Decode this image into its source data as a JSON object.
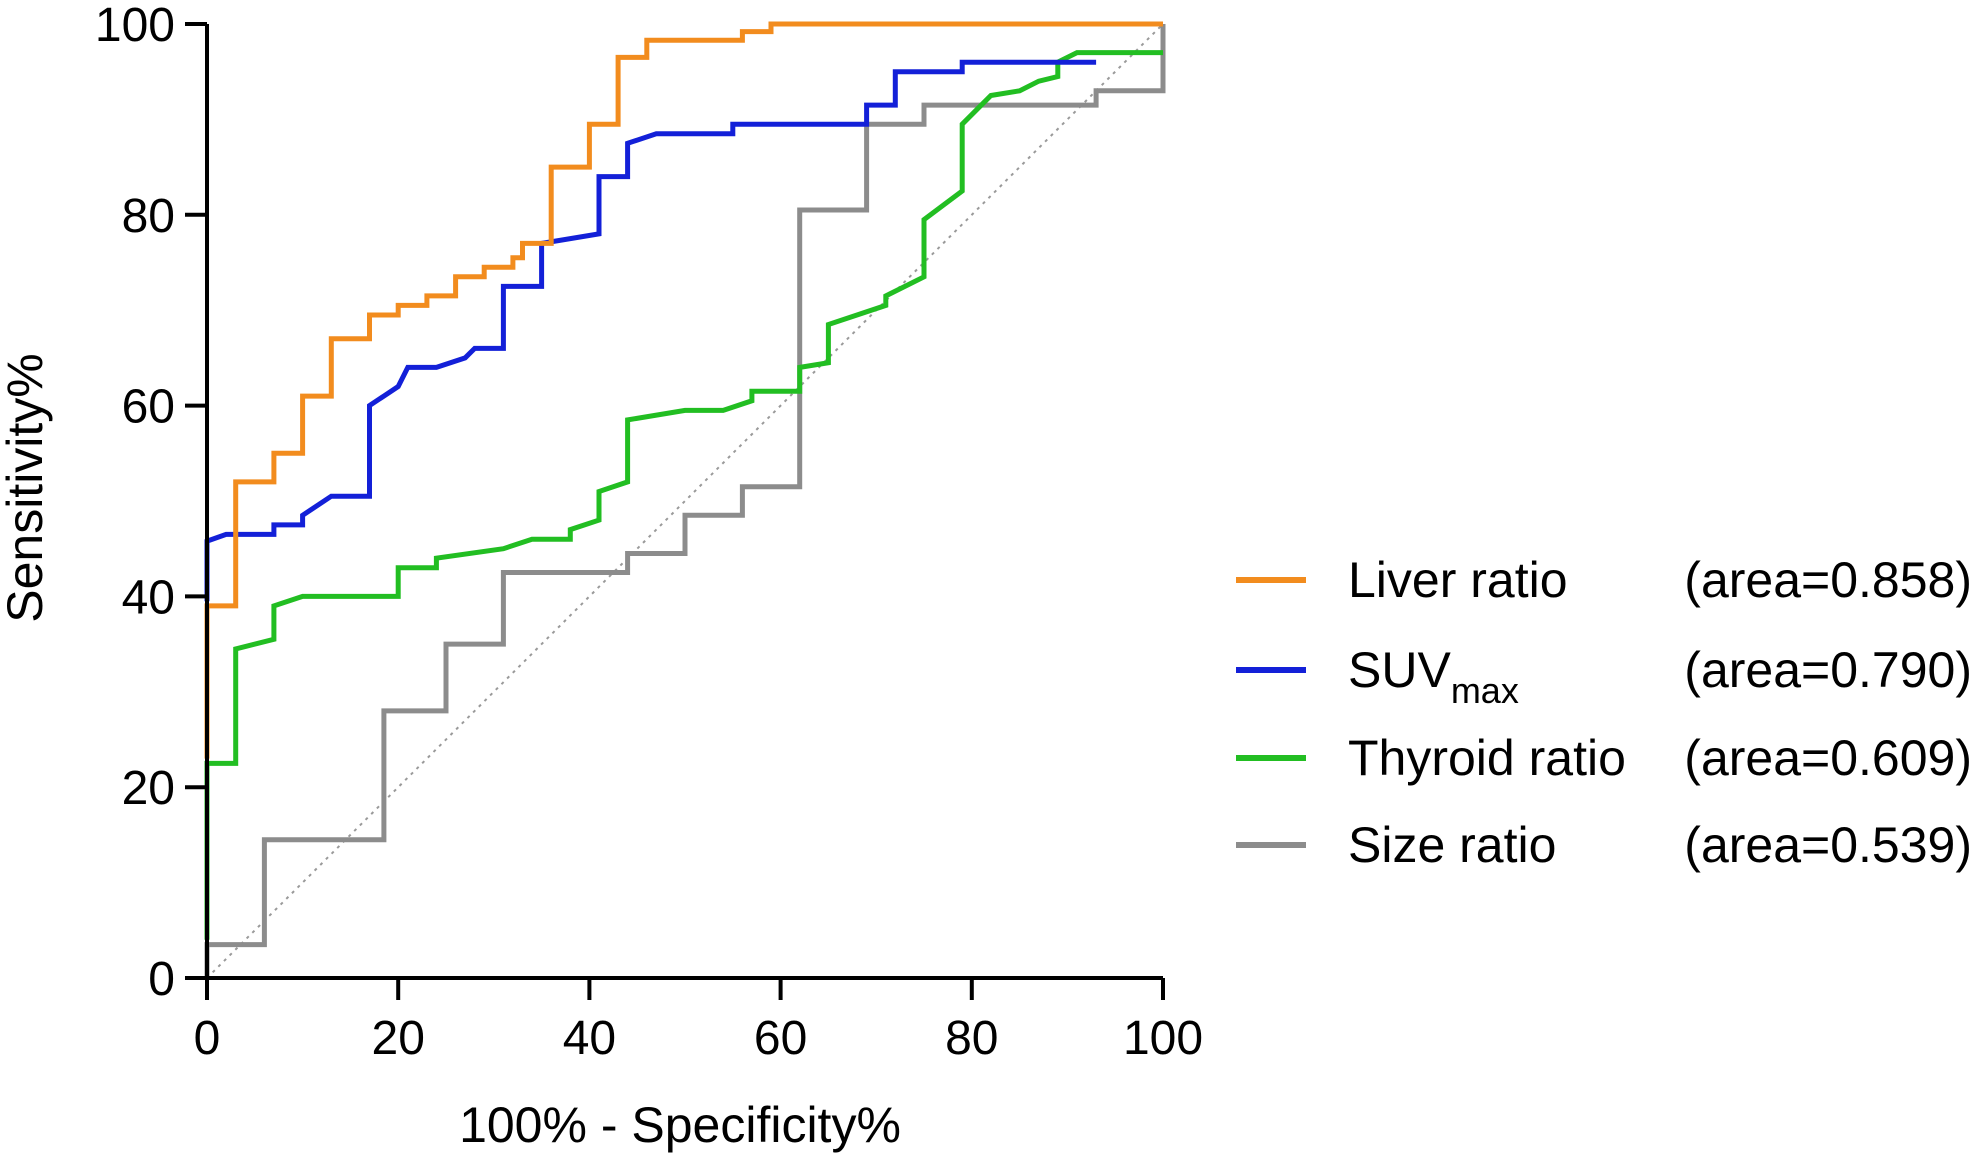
{
  "chart_data": {
    "type": "line",
    "title": "",
    "xlabel": "100% - Specificity%",
    "ylabel": "Sensitivity%",
    "xlim": [
      0,
      100
    ],
    "ylim": [
      0,
      100
    ],
    "x_ticks": [
      "0",
      "20",
      "40",
      "60",
      "80",
      "100"
    ],
    "y_ticks": [
      "0",
      "20",
      "40",
      "60",
      "80",
      "100"
    ],
    "reference_line": {
      "style": "dotted",
      "from": [
        0,
        0
      ],
      "to": [
        100,
        100
      ]
    },
    "legend_position": "right",
    "series": [
      {
        "name": "Liver ratio",
        "area_label": "(area=0.858)",
        "color": "#F28C1E",
        "points": [
          [
            0,
            23
          ],
          [
            0,
            39
          ],
          [
            3,
            39
          ],
          [
            3,
            52
          ],
          [
            7,
            52
          ],
          [
            7,
            55
          ],
          [
            10,
            55
          ],
          [
            10,
            61
          ],
          [
            13,
            61
          ],
          [
            13,
            67
          ],
          [
            17,
            67
          ],
          [
            17,
            69.5
          ],
          [
            20,
            69.5
          ],
          [
            20,
            70.5
          ],
          [
            23,
            70.5
          ],
          [
            23,
            71.5
          ],
          [
            26,
            71.5
          ],
          [
            26,
            73.5
          ],
          [
            29,
            73.5
          ],
          [
            29,
            74.5
          ],
          [
            32,
            74.5
          ],
          [
            32,
            75.5
          ],
          [
            33,
            75.5
          ],
          [
            33,
            77
          ],
          [
            36,
            77
          ],
          [
            36,
            85
          ],
          [
            40,
            85
          ],
          [
            40,
            89.5
          ],
          [
            43,
            89.5
          ],
          [
            43,
            96.5
          ],
          [
            46,
            96.5
          ],
          [
            46,
            98.3
          ],
          [
            56,
            98.3
          ],
          [
            56,
            99.2
          ],
          [
            59,
            99.2
          ],
          [
            59,
            100
          ],
          [
            100,
            100
          ]
        ]
      },
      {
        "name": "SUVmax",
        "name_main": "SUV",
        "name_sub": "max",
        "area_label": "(area=0.790)",
        "color": "#1320D8",
        "points": [
          [
            0,
            39.5
          ],
          [
            0,
            45.8
          ],
          [
            2,
            46.5
          ],
          [
            7,
            46.5
          ],
          [
            7,
            47.5
          ],
          [
            10,
            47.5
          ],
          [
            10,
            48.5
          ],
          [
            13,
            50.5
          ],
          [
            17,
            50.5
          ],
          [
            17,
            60
          ],
          [
            20,
            62
          ],
          [
            21,
            64
          ],
          [
            24,
            64
          ],
          [
            27,
            65
          ],
          [
            28,
            66
          ],
          [
            31,
            66
          ],
          [
            31,
            72.5
          ],
          [
            35,
            72.5
          ],
          [
            35,
            77
          ],
          [
            41,
            78
          ],
          [
            41,
            84
          ],
          [
            44,
            84
          ],
          [
            44,
            87.5
          ],
          [
            47,
            88.5
          ],
          [
            55,
            88.5
          ],
          [
            55,
            89.5
          ],
          [
            69,
            89.5
          ],
          [
            69,
            91.5
          ],
          [
            72,
            91.5
          ],
          [
            72,
            95
          ],
          [
            79,
            95
          ],
          [
            79,
            96
          ],
          [
            93,
            96
          ]
        ]
      },
      {
        "name": "Thyroid ratio",
        "area_label": "(area=0.609)",
        "color": "#22BE22",
        "points": [
          [
            0,
            4
          ],
          [
            0,
            22.5
          ],
          [
            3,
            22.5
          ],
          [
            3,
            34.5
          ],
          [
            7,
            35.5
          ],
          [
            7,
            39
          ],
          [
            10,
            40
          ],
          [
            20,
            40
          ],
          [
            20,
            43
          ],
          [
            24,
            43
          ],
          [
            24,
            44
          ],
          [
            31,
            45
          ],
          [
            34,
            46
          ],
          [
            38,
            46
          ],
          [
            38,
            47
          ],
          [
            41,
            48
          ],
          [
            41,
            51
          ],
          [
            44,
            52
          ],
          [
            44,
            58.5
          ],
          [
            50,
            59.5
          ],
          [
            54,
            59.5
          ],
          [
            57,
            60.5
          ],
          [
            57,
            61.5
          ],
          [
            62,
            61.5
          ],
          [
            62,
            64
          ],
          [
            65,
            64.5
          ],
          [
            65,
            68.5
          ],
          [
            71,
            70.5
          ],
          [
            71,
            71.5
          ],
          [
            75,
            73.5
          ],
          [
            75,
            79.5
          ],
          [
            79,
            82.5
          ],
          [
            79,
            89.5
          ],
          [
            82,
            92.5
          ],
          [
            85,
            93
          ],
          [
            87,
            94
          ],
          [
            89,
            94.5
          ],
          [
            89,
            96
          ],
          [
            91,
            97
          ],
          [
            100,
            97
          ]
        ]
      },
      {
        "name": "Size ratio",
        "area_label": "(area=0.539)",
        "color": "#8C8C8C",
        "points": [
          [
            0,
            0
          ],
          [
            0,
            3.5
          ],
          [
            6,
            3.5
          ],
          [
            6,
            14.5
          ],
          [
            18.5,
            14.5
          ],
          [
            18.5,
            28
          ],
          [
            25,
            28
          ],
          [
            25,
            35
          ],
          [
            31,
            35
          ],
          [
            31,
            42.5
          ],
          [
            44,
            42.5
          ],
          [
            44,
            44.5
          ],
          [
            50,
            44.5
          ],
          [
            50,
            48.5
          ],
          [
            56,
            48.5
          ],
          [
            56,
            51.5
          ],
          [
            62,
            51.5
          ],
          [
            62,
            80.5
          ],
          [
            69,
            80.5
          ],
          [
            69,
            89.5
          ],
          [
            75,
            89.5
          ],
          [
            75,
            91.5
          ],
          [
            93,
            91.5
          ],
          [
            93,
            93
          ],
          [
            100,
            93
          ],
          [
            100,
            100
          ]
        ]
      }
    ]
  }
}
